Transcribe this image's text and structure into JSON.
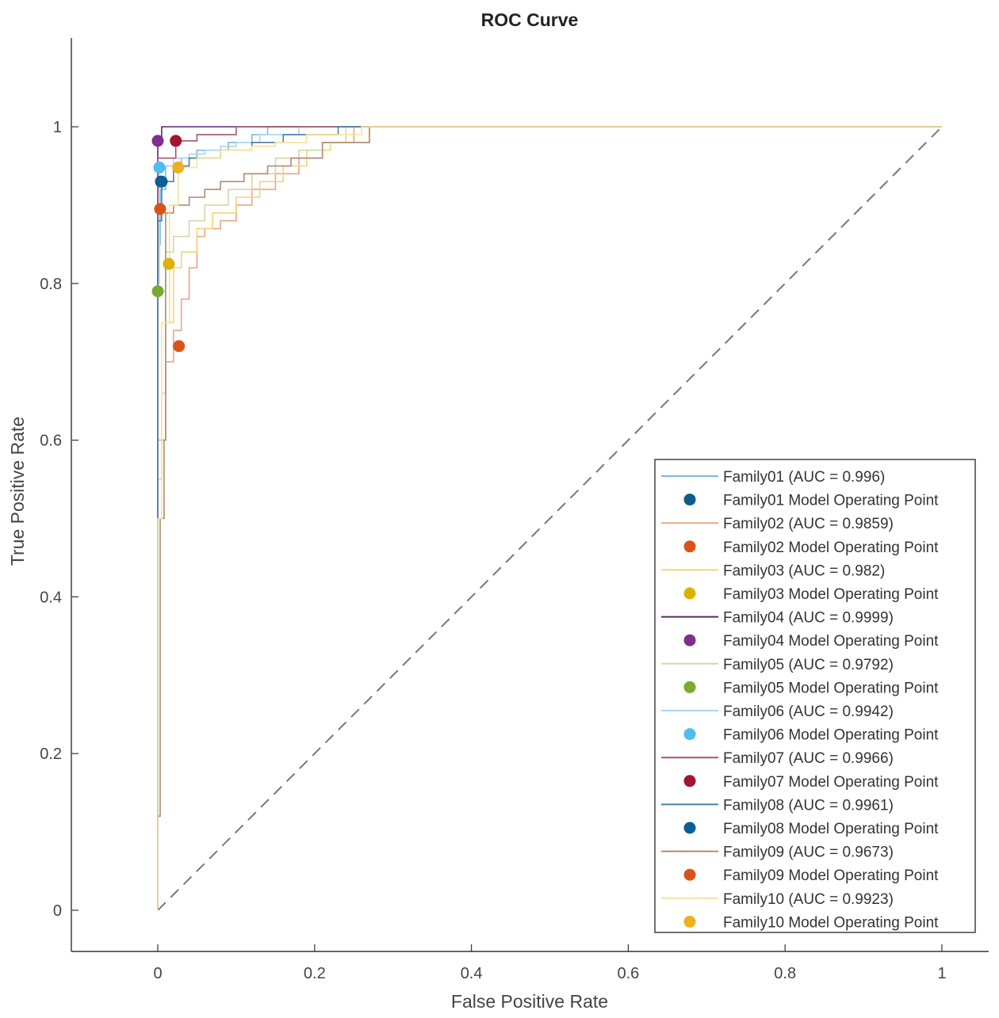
{
  "chart_data": {
    "type": "line",
    "title": "ROC Curve",
    "xlabel": "False Positive Rate",
    "ylabel": "True Positive Rate",
    "xlim": [
      -0.11,
      1.06
    ],
    "ylim": [
      -0.05,
      1.12
    ],
    "xticks": [
      0,
      0.2,
      0.4,
      0.6,
      0.8,
      1
    ],
    "xtick_labels": [
      "0",
      "0.2",
      "0.4",
      "0.6",
      "0.8",
      "1"
    ],
    "yticks": [
      0,
      0.2,
      0.4,
      0.6,
      0.8,
      1
    ],
    "ytick_labels": [
      "0",
      "0.2",
      "0.4",
      "0.6",
      "0.8",
      "1"
    ],
    "grid": false,
    "legend_position": "bottom-right",
    "chance_line": {
      "x": [
        0,
        1
      ],
      "y": [
        0,
        1
      ],
      "color": "#777777",
      "style": "dashed"
    },
    "series": [
      {
        "name": "Family01",
        "auc": "0.996",
        "color": "#7fb8db",
        "curve_label": "Family01 (AUC = 0.996)",
        "point_label": "Family01 Model Operating Point",
        "point_color": "#0e5c8e",
        "operating_point": [
          0.004,
          0.93
        ],
        "x": [
          0,
          0,
          0.003,
          0.003,
          0.01,
          0.01,
          0.03,
          0.03,
          0.05,
          0.05,
          0.09,
          0.09,
          0.12,
          0.12,
          0.14,
          0.14,
          1
        ],
        "y": [
          0,
          0.85,
          0.85,
          0.92,
          0.92,
          0.95,
          0.95,
          0.96,
          0.96,
          0.97,
          0.97,
          0.98,
          0.98,
          0.99,
          0.99,
          1,
          1
        ]
      },
      {
        "name": "Family02",
        "auc": "0.9859",
        "color": "#e8a585",
        "curve_label": "Family02 (AUC = 0.9859)",
        "point_label": "Family02 Model Operating Point",
        "point_color": "#d95319",
        "operating_point": [
          0.027,
          0.72
        ],
        "x": [
          0,
          0,
          0.01,
          0.01,
          0.02,
          0.02,
          0.03,
          0.03,
          0.04,
          0.04,
          0.05,
          0.05,
          0.06,
          0.06,
          0.08,
          0.08,
          0.1,
          0.1,
          0.12,
          0.12,
          0.15,
          0.15,
          0.18,
          0.18,
          0.21,
          0.21,
          0.25,
          0.25,
          1
        ],
        "y": [
          0,
          0.6,
          0.6,
          0.7,
          0.7,
          0.74,
          0.74,
          0.78,
          0.78,
          0.82,
          0.82,
          0.86,
          0.86,
          0.87,
          0.87,
          0.88,
          0.88,
          0.9,
          0.9,
          0.92,
          0.92,
          0.94,
          0.94,
          0.96,
          0.96,
          0.98,
          0.98,
          1,
          1
        ]
      },
      {
        "name": "Family03",
        "auc": "0.982",
        "color": "#f2d47a",
        "curve_label": "Family03 (AUC = 0.982)",
        "point_label": "Family03 Model Operating Point",
        "point_color": "#e0b000",
        "operating_point": [
          0.014,
          0.825
        ],
        "x": [
          0,
          0,
          0.005,
          0.005,
          0.01,
          0.01,
          0.02,
          0.02,
          0.03,
          0.03,
          0.05,
          0.05,
          0.07,
          0.07,
          0.1,
          0.1,
          0.13,
          0.13,
          0.16,
          0.16,
          0.19,
          0.19,
          0.22,
          0.22,
          0.27,
          0.27,
          1
        ],
        "y": [
          0,
          0.55,
          0.55,
          0.66,
          0.66,
          0.75,
          0.75,
          0.82,
          0.82,
          0.84,
          0.84,
          0.87,
          0.87,
          0.89,
          0.89,
          0.91,
          0.91,
          0.93,
          0.93,
          0.95,
          0.95,
          0.97,
          0.97,
          0.98,
          0.98,
          1,
          1
        ]
      },
      {
        "name": "Family04",
        "auc": "0.9999",
        "color": "#5a2a6e",
        "curve_label": "Family04 (AUC = 0.9999)",
        "point_label": "Family04 Model Operating Point",
        "point_color": "#7e2f8e",
        "operating_point": [
          0,
          0.982
        ],
        "x": [
          0,
          0,
          0.005,
          0.005,
          1
        ],
        "y": [
          0,
          0.98,
          0.98,
          1,
          1
        ]
      },
      {
        "name": "Family05",
        "auc": "0.9792",
        "color": "#cfd9a8",
        "curve_label": "Family05 (AUC = 0.9792)",
        "point_label": "Family05 Model Operating Point",
        "point_color": "#77ac30",
        "operating_point": [
          0,
          0.79
        ],
        "x": [
          0,
          0,
          0.01,
          0.01,
          0.02,
          0.02,
          0.04,
          0.04,
          0.06,
          0.06,
          0.09,
          0.09,
          0.12,
          0.12,
          0.15,
          0.15,
          0.18,
          0.18,
          0.21,
          0.21,
          0.24,
          0.24,
          1
        ],
        "y": [
          0,
          0.79,
          0.79,
          0.84,
          0.84,
          0.86,
          0.86,
          0.88,
          0.88,
          0.9,
          0.9,
          0.92,
          0.92,
          0.94,
          0.94,
          0.96,
          0.96,
          0.97,
          0.97,
          0.98,
          0.98,
          1,
          1
        ]
      },
      {
        "name": "Family06",
        "auc": "0.9942",
        "color": "#a9d6ee",
        "curve_label": "Family06 (AUC = 0.9942)",
        "point_label": "Family06 Model Operating Point",
        "point_color": "#4dbeee",
        "operating_point": [
          0.002,
          0.948
        ],
        "x": [
          0,
          0,
          0.002,
          0.002,
          0.02,
          0.02,
          0.04,
          0.04,
          0.06,
          0.06,
          0.08,
          0.08,
          0.1,
          0.1,
          0.13,
          0.13,
          0.18,
          0.18,
          1
        ],
        "y": [
          0,
          0.8,
          0.8,
          0.95,
          0.95,
          0.96,
          0.96,
          0.965,
          0.965,
          0.97,
          0.97,
          0.975,
          0.975,
          0.98,
          0.98,
          0.99,
          0.99,
          1,
          1
        ]
      },
      {
        "name": "Family07",
        "auc": "0.9966",
        "color": "#a45470",
        "curve_label": "Family07 (AUC = 0.9966)",
        "point_label": "Family07 Model Operating Point",
        "point_color": "#a2142f",
        "operating_point": [
          0.023,
          0.982
        ],
        "x": [
          0,
          0,
          0.023,
          0.023,
          0.05,
          0.05,
          0.1,
          0.1,
          1
        ],
        "y": [
          0,
          0.96,
          0.96,
          0.982,
          0.982,
          0.99,
          0.99,
          1,
          1
        ]
      },
      {
        "name": "Family08",
        "auc": "0.9961",
        "color": "#4d7fa3",
        "curve_label": "Family08 (AUC = 0.9961)",
        "point_label": "Family08 Model Operating Point",
        "point_color": "#0b5e96",
        "operating_point": [
          0.005,
          0.93
        ],
        "x": [
          0,
          0,
          0.005,
          0.005,
          0.02,
          0.02,
          0.04,
          0.04,
          0.08,
          0.08,
          0.12,
          0.12,
          0.16,
          0.16,
          0.23,
          0.23,
          1
        ],
        "y": [
          0,
          0.88,
          0.88,
          0.93,
          0.93,
          0.95,
          0.95,
          0.96,
          0.96,
          0.97,
          0.97,
          0.98,
          0.98,
          0.99,
          0.99,
          1,
          1
        ]
      },
      {
        "name": "Family09",
        "auc": "0.9673",
        "color": "#b08a74",
        "curve_label": "Family09 (AUC = 0.9673)",
        "point_label": "Family09 Model Operating Point",
        "point_color": "#d95319",
        "operating_point": [
          0.003,
          0.895
        ],
        "x": [
          0,
          0,
          0.003,
          0.003,
          0.008,
          0.008,
          0.01,
          0.01,
          0.02,
          0.02,
          0.04,
          0.04,
          0.06,
          0.06,
          0.08,
          0.08,
          0.11,
          0.11,
          0.14,
          0.14,
          0.17,
          0.17,
          0.21,
          0.21,
          0.27,
          0.27,
          1
        ],
        "y": [
          0,
          0.12,
          0.12,
          0.5,
          0.5,
          0.6,
          0.6,
          0.89,
          0.89,
          0.9,
          0.9,
          0.91,
          0.91,
          0.92,
          0.92,
          0.93,
          0.93,
          0.94,
          0.94,
          0.95,
          0.95,
          0.96,
          0.96,
          0.98,
          0.98,
          1,
          1
        ]
      },
      {
        "name": "Family10",
        "auc": "0.9923",
        "color": "#f6e39a",
        "curve_label": "Family10 (AUC = 0.9923)",
        "point_label": "Family10 Model Operating Point",
        "point_color": "#edb120",
        "operating_point": [
          0.026,
          0.948
        ],
        "x": [
          0,
          0,
          0.005,
          0.005,
          0.015,
          0.015,
          0.026,
          0.026,
          0.05,
          0.05,
          0.08,
          0.08,
          0.12,
          0.12,
          0.15,
          0.15,
          0.19,
          0.19,
          0.26,
          0.26,
          1
        ],
        "y": [
          0,
          0.5,
          0.5,
          0.75,
          0.75,
          0.9,
          0.9,
          0.948,
          0.948,
          0.96,
          0.96,
          0.97,
          0.97,
          0.975,
          0.975,
          0.98,
          0.98,
          0.99,
          0.99,
          1,
          1
        ]
      }
    ]
  }
}
